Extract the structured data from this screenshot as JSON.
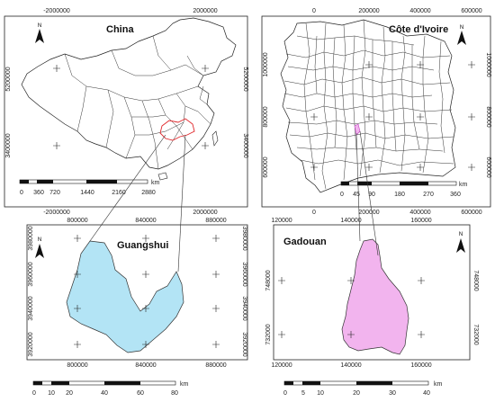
{
  "panels": {
    "china": {
      "title": "China",
      "x_ticks": [
        "-2000000",
        "2000000"
      ],
      "y_ticks": [
        "5200000",
        "3400000"
      ],
      "scale_labels": [
        "0",
        "360",
        "720",
        "1440",
        "2160",
        "2880"
      ],
      "scale_unit": "km",
      "north": "N"
    },
    "ivoire": {
      "title": "Côte d'Ivoire",
      "x_ticks": [
        "0",
        "200000",
        "400000",
        "600000"
      ],
      "y_ticks": [
        "1000000",
        "800000",
        "600000"
      ],
      "scale_labels": [
        "0",
        "45",
        "90",
        "180",
        "270",
        "360"
      ],
      "scale_unit": "km",
      "north": "N"
    },
    "guangshui": {
      "title": "Guangshui",
      "x_ticks": [
        "800000",
        "840000",
        "880000"
      ],
      "y_ticks": [
        "3980000",
        "3960000",
        "3940000",
        "3920000"
      ],
      "scale_labels": [
        "0",
        "10",
        "20",
        "40",
        "60",
        "80"
      ],
      "scale_unit": "km",
      "north": "N"
    },
    "gadouan": {
      "title": "Gadouan",
      "x_ticks": [
        "120000",
        "140000",
        "160000"
      ],
      "y_ticks": [
        "748000",
        "732000"
      ],
      "scale_labels": [
        "0",
        "5",
        "10",
        "20",
        "30",
        "40"
      ],
      "scale_unit": "km",
      "north": "N"
    }
  },
  "colors": {
    "guangshui_fill": "#b3e4f5",
    "gadouan_fill": "#f2b4ee",
    "highlight_outline": "#e0262a",
    "zoom_line": "#333333"
  }
}
